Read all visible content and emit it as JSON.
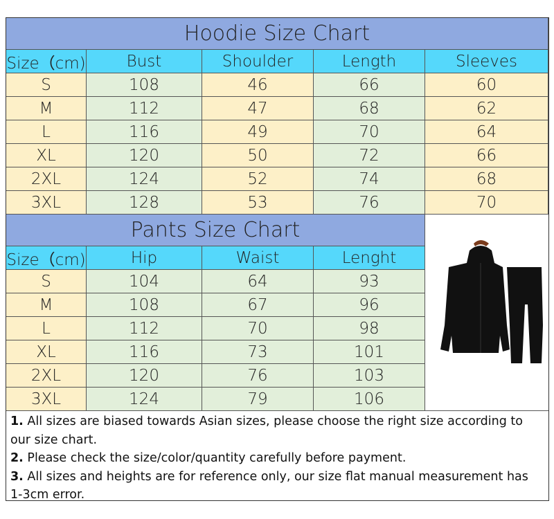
{
  "hoodie": {
    "title": "Hoodie Size Chart",
    "headers": [
      "Size（cm)",
      "Bust",
      "Shoulder",
      "Length",
      "Sleeves"
    ],
    "rows": [
      [
        "S",
        "108",
        "46",
        "66",
        "60"
      ],
      [
        "M",
        "112",
        "47",
        "68",
        "62"
      ],
      [
        "L",
        "116",
        "49",
        "70",
        "64"
      ],
      [
        "XL",
        "120",
        "50",
        "72",
        "66"
      ],
      [
        "2XL",
        "124",
        "52",
        "74",
        "68"
      ],
      [
        "3XL",
        "128",
        "53",
        "76",
        "70"
      ]
    ]
  },
  "pants": {
    "title": "Pants Size Chart",
    "headers": [
      "Size（cm)",
      "Hip",
      "Waist",
      "Lenght"
    ],
    "rows": [
      [
        "S",
        "104",
        "64",
        "93"
      ],
      [
        "M",
        "108",
        "67",
        "96"
      ],
      [
        "L",
        "112",
        "70",
        "98"
      ],
      [
        "XL",
        "116",
        "73",
        "101"
      ],
      [
        "2XL",
        "120",
        "76",
        "103"
      ],
      [
        "3XL",
        "124",
        "79",
        "106"
      ]
    ]
  },
  "notes": [
    {
      "num": "1.",
      "text": " All sizes are biased towards Asian sizes, please choose the right size according to our size chart."
    },
    {
      "num": "2.",
      "text": " Please check the size/color/quantity carefully before payment."
    },
    {
      "num": "3.",
      "text": " All sizes and heights are for reference only, our size flat manual measurement has 1-3cm error."
    }
  ],
  "colors": {
    "title": "#8fa9e0",
    "header": "#55d8fb",
    "yellow": "#fdf0c8",
    "green": "#e2efda"
  },
  "image": "black-hoodie-and-pants-photo"
}
